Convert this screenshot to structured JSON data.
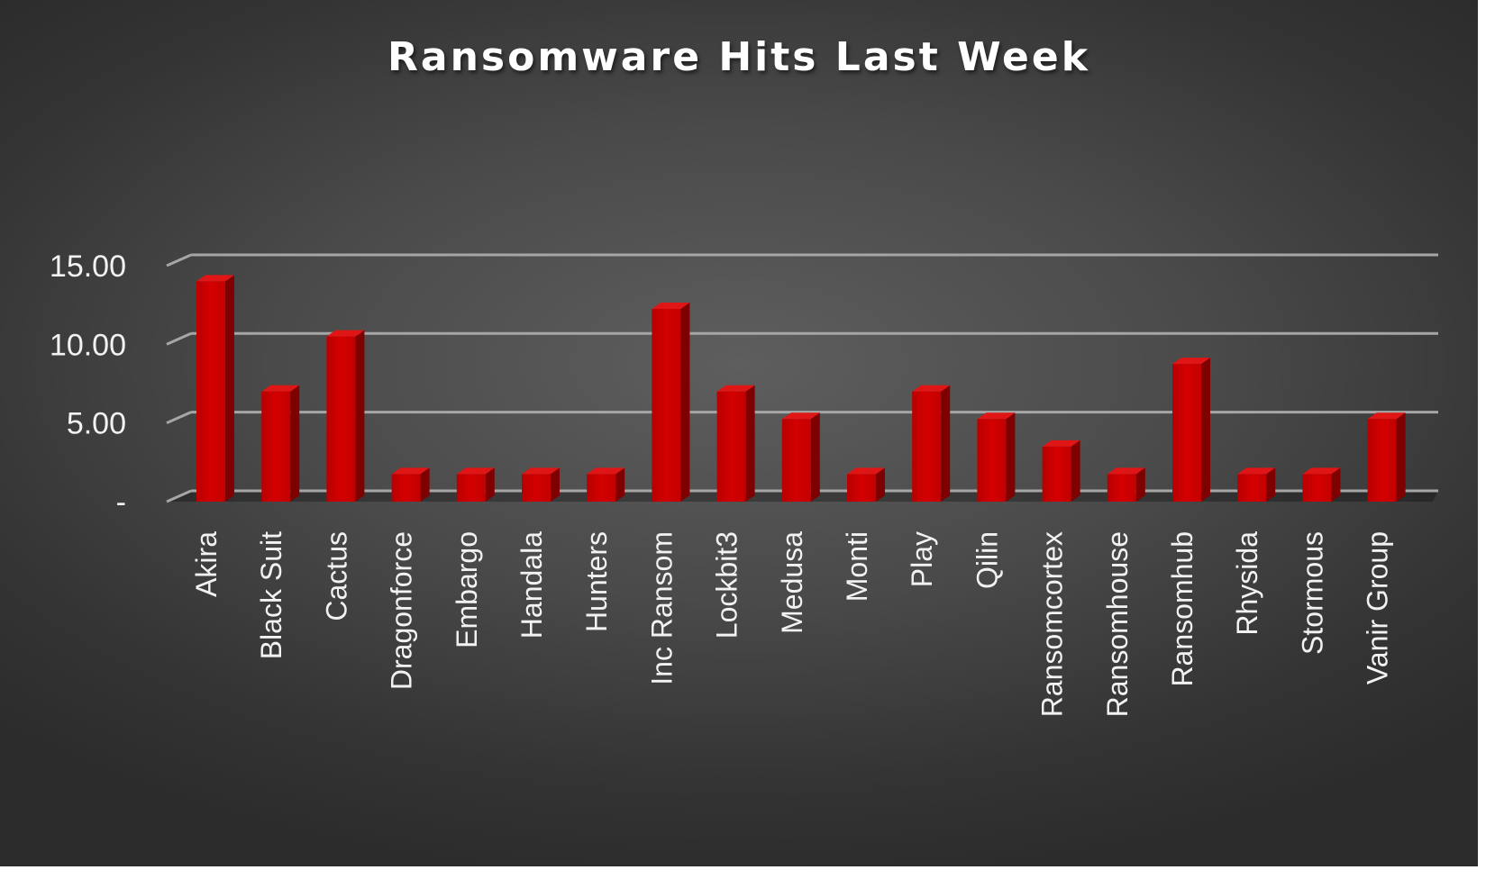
{
  "chart_data": {
    "type": "bar",
    "title": "Ransomware Hits Last Week",
    "xlabel": "",
    "ylabel": "",
    "categories": [
      "Akira",
      "Black Suit",
      "Cactus",
      "Dragonforce",
      "Embargo",
      "Handala",
      "Hunters",
      "Inc Ransom",
      "Lockbit3",
      "Medusa",
      "Monti",
      "Play",
      "Qilin",
      "Ransomcortex",
      "Ransomhouse",
      "Ransomhub",
      "Rhysida",
      "Stormous",
      "Vanir Group"
    ],
    "values": [
      14,
      7,
      10.5,
      1.75,
      1.75,
      1.75,
      1.75,
      12.25,
      7,
      5.25,
      1.75,
      7,
      5.25,
      3.5,
      1.75,
      8.75,
      1.75,
      1.75,
      5.25
    ],
    "ylim": [
      0,
      15
    ],
    "yticks": [
      0,
      5,
      10,
      15
    ],
    "ytick_labels": [
      "-",
      "5.00",
      "10.00",
      "15.00"
    ],
    "grid": true,
    "legend": "none",
    "bar_color": "#c00000",
    "background": "dark-gray-gradient",
    "style": "3d-column"
  }
}
